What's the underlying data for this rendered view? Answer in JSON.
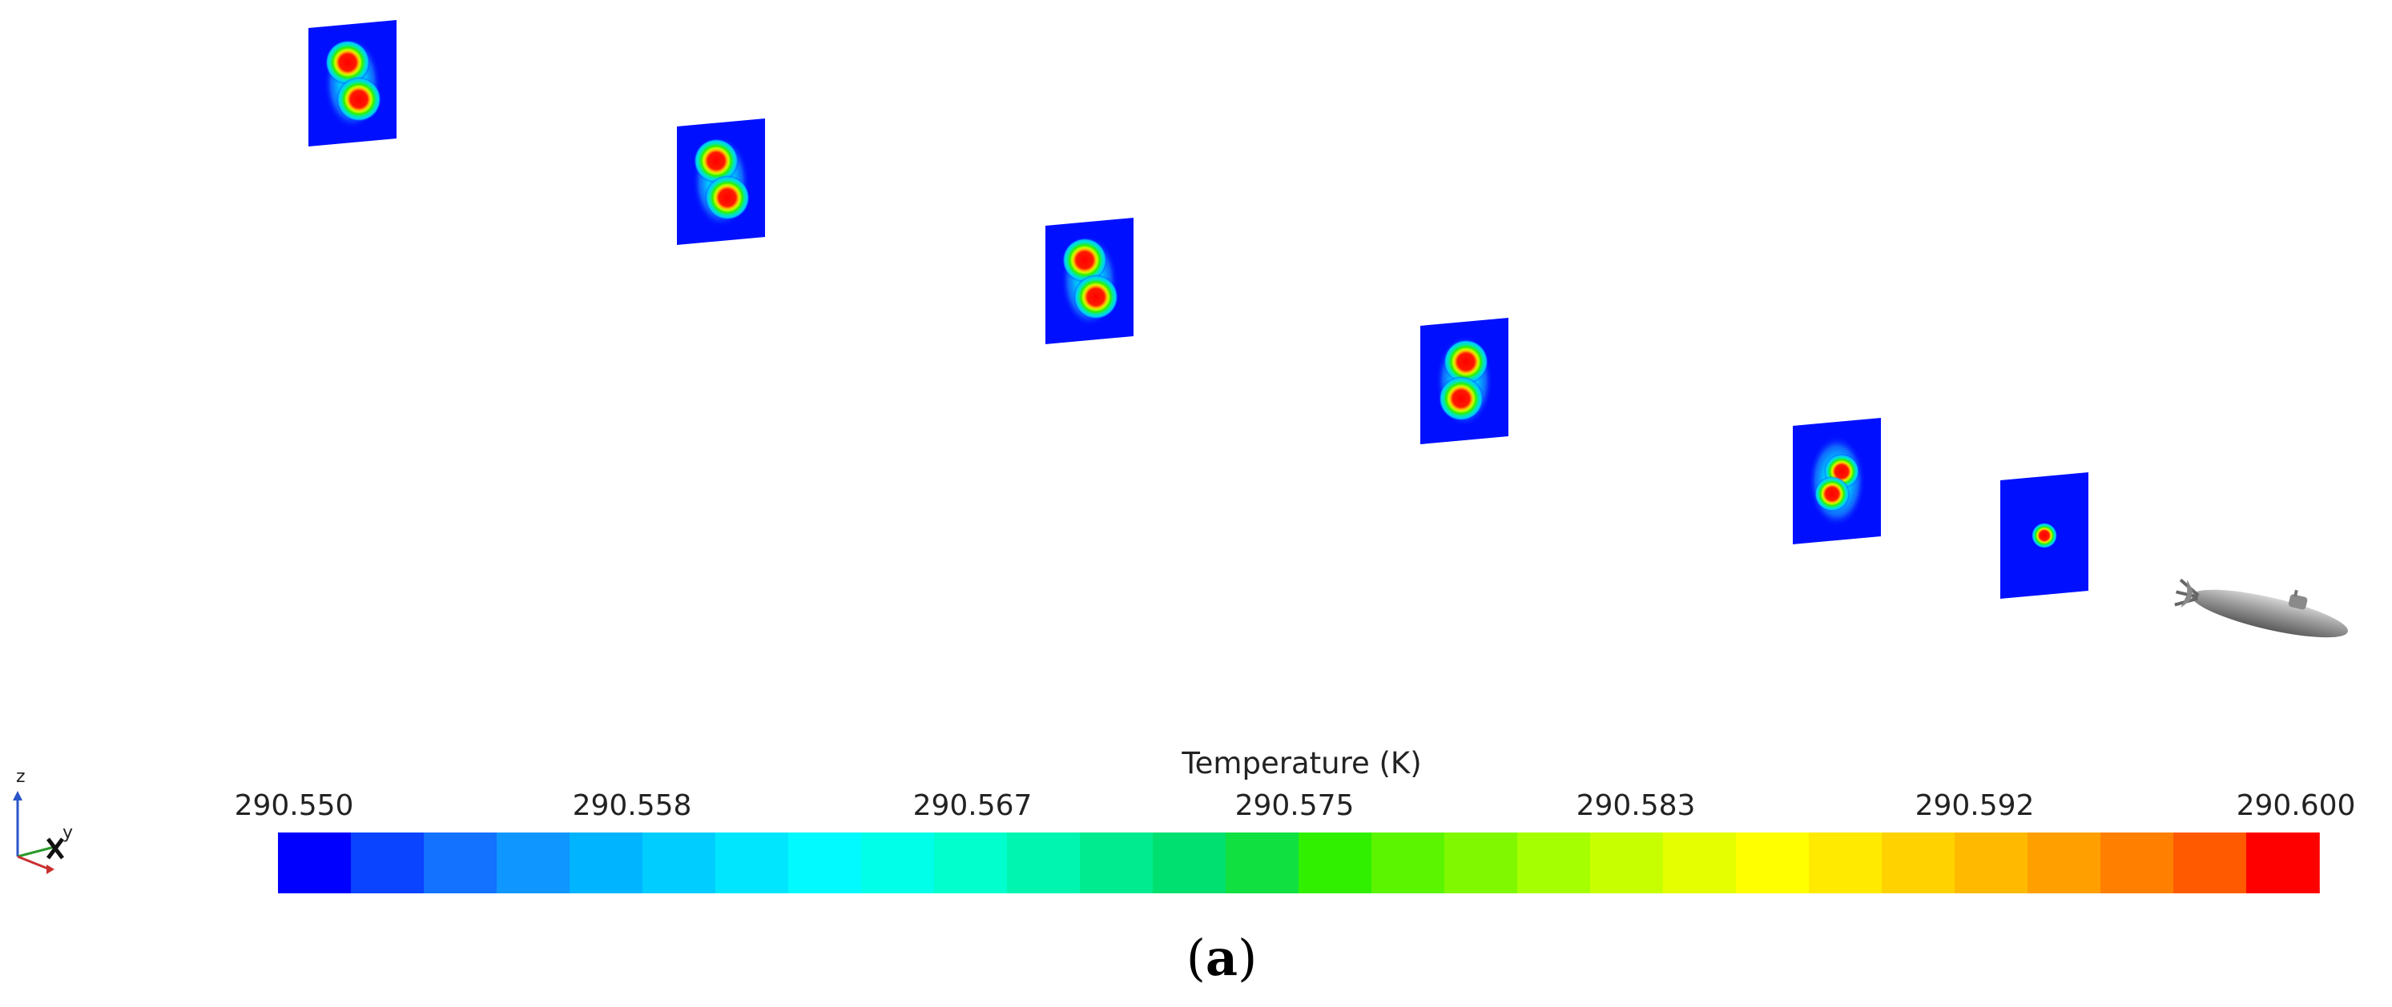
{
  "colorbar": {
    "title": "Temperature (K)",
    "min": 290.55,
    "max": 290.6,
    "ticks": [
      "290.550",
      "290.558",
      "290.567",
      "290.575",
      "290.583",
      "290.592",
      "290.600"
    ],
    "colors": [
      "#0000ff",
      "#0a44ff",
      "#1372ff",
      "#0f96ff",
      "#00b4ff",
      "#00cdff",
      "#00e6ff",
      "#00faff",
      "#00ffe8",
      "#00ffcc",
      "#00f5b0",
      "#00eb90",
      "#00e070",
      "#10e040",
      "#30f000",
      "#5cf500",
      "#80f800",
      "#a6ff00",
      "#c8ff00",
      "#e6ff00",
      "#ffff00",
      "#ffea00",
      "#ffd200",
      "#ffba00",
      "#ffa000",
      "#ff8000",
      "#ff5a00",
      "#ff0000"
    ]
  },
  "slices": [
    {
      "name": "slice-1",
      "pattern": "two-cores",
      "separation": "wide"
    },
    {
      "name": "slice-2",
      "pattern": "two-cores",
      "separation": "wide"
    },
    {
      "name": "slice-3",
      "pattern": "two-cores",
      "separation": "wide"
    },
    {
      "name": "slice-4",
      "pattern": "two-cores",
      "separation": "medium"
    },
    {
      "name": "slice-5",
      "pattern": "two-cores",
      "separation": "close"
    },
    {
      "name": "slice-6",
      "pattern": "single-core",
      "separation": "merged"
    }
  ],
  "axes": {
    "z": "z",
    "y": "y"
  },
  "caption": {
    "open": "(",
    "letter": "a",
    "close": ")"
  },
  "body_icon": "submarine-model"
}
